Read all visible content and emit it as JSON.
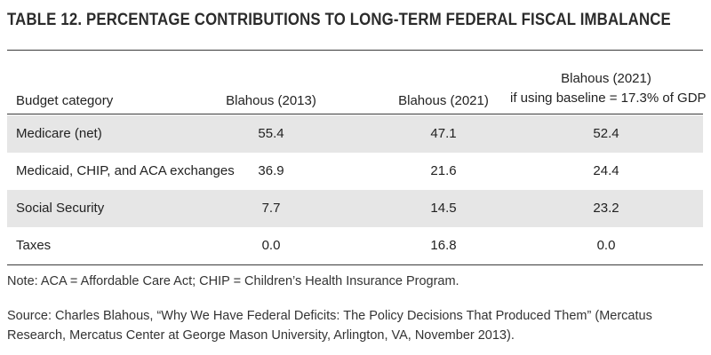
{
  "title": "TABLE 12. PERCENTAGE CONTRIBUTIONS TO LONG-TERM FEDERAL FISCAL IMBALANCE",
  "table": {
    "headers": {
      "category": "Budget category",
      "col1": "Blahous (2013)",
      "col2": "Blahous (2021)",
      "col3_line1": "Blahous (2021)",
      "col3_line2": "if using baseline = 17.3% of GDP"
    },
    "rows": [
      {
        "category": "Medicare (net)",
        "col1": "55.4",
        "col2": "47.1",
        "col3": "52.4"
      },
      {
        "category": "Medicaid, CHIP, and ACA exchanges",
        "col1": "36.9",
        "col2": "21.6",
        "col3": "24.4"
      },
      {
        "category": "Social Security",
        "col1": "7.7",
        "col2": "14.5",
        "col3": "23.2"
      },
      {
        "category": "Taxes",
        "col1": "0.0",
        "col2": "16.8",
        "col3": "0.0"
      }
    ]
  },
  "note": "Note: ACA = Affordable Care Act; CHIP = Children’s Health Insurance Program.",
  "source": "Source: Charles Blahous, “Why We Have Federal Deficits: The Policy Decisions That Produced Them” (Mercatus Research, Mercatus Center at George Mason University, Arlington, VA, November 2013).",
  "colors": {
    "row_shade": "#e6e6e6",
    "rule": "#3a3a3a",
    "text": "#222222"
  }
}
